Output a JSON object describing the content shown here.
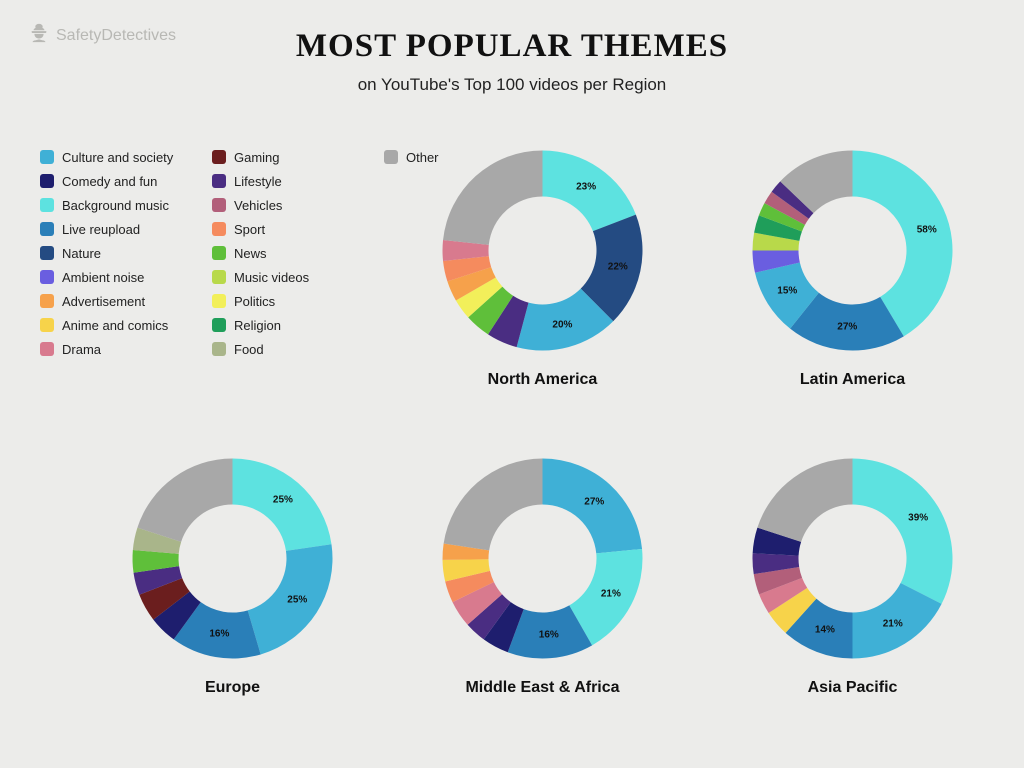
{
  "brand": {
    "name": "SafetyDetectives"
  },
  "title": "MOST POPULAR THEMES",
  "subtitle": "on YouTube's Top 100 videos per Region",
  "background_color": "#ececea",
  "title_fontsize": 33,
  "subtitle_fontsize": 17,
  "donut": {
    "outer_radius": 100,
    "inner_radius": 54,
    "start_angle_deg": 0,
    "label_radius": 77
  },
  "categories": {
    "culture": {
      "label": "Culture and society",
      "color": "#3fb0d6"
    },
    "comedy": {
      "label": "Comedy and fun",
      "color": "#1e1e6e"
    },
    "bgmusic": {
      "label": "Background music",
      "color": "#5de2e0"
    },
    "live": {
      "label": "Live reupload",
      "color": "#2a7fb8"
    },
    "nature": {
      "label": "Nature",
      "color": "#244b82"
    },
    "ambient": {
      "label": "Ambient noise",
      "color": "#6a5ee0"
    },
    "advert": {
      "label": "Advertisement",
      "color": "#f6a14b"
    },
    "anime": {
      "label": "Anime and comics",
      "color": "#f7d34a"
    },
    "drama": {
      "label": "Drama",
      "color": "#d87a8e"
    },
    "gaming": {
      "label": "Gaming",
      "color": "#6b1e1e"
    },
    "lifestyle": {
      "label": "Lifestyle",
      "color": "#4a2d82"
    },
    "vehicles": {
      "label": "Vehicles",
      "color": "#b25f7a"
    },
    "sport": {
      "label": "Sport",
      "color": "#f58b5e"
    },
    "news": {
      "label": "News",
      "color": "#5fbf3a"
    },
    "musicvideos": {
      "label": "Music videos",
      "color": "#b8d94a"
    },
    "politics": {
      "label": "Politics",
      "color": "#f2ef5a"
    },
    "religion": {
      "label": "Religion",
      "color": "#1f9e5a"
    },
    "food": {
      "label": "Food",
      "color": "#a9b58a"
    },
    "other": {
      "label": "Other",
      "color": "#a8a8a8"
    }
  },
  "legend_order": [
    "culture",
    "comedy",
    "bgmusic",
    "live",
    "nature",
    "ambient",
    "advert",
    "anime",
    "drama",
    "gaming",
    "lifestyle",
    "vehicles",
    "sport",
    "news",
    "musicvideos",
    "politics",
    "religion",
    "food",
    "other"
  ],
  "charts": [
    {
      "id": "chart-na",
      "label": "North America",
      "slices": [
        {
          "cat": "bgmusic",
          "value": 23,
          "show_label": true
        },
        {
          "cat": "nature",
          "value": 22,
          "show_label": true
        },
        {
          "cat": "culture",
          "value": 20,
          "show_label": true
        },
        {
          "cat": "lifestyle",
          "value": 6,
          "show_label": false
        },
        {
          "cat": "news",
          "value": 5,
          "show_label": false
        },
        {
          "cat": "politics",
          "value": 4,
          "show_label": false
        },
        {
          "cat": "advert",
          "value": 4,
          "show_label": false
        },
        {
          "cat": "sport",
          "value": 4,
          "show_label": false
        },
        {
          "cat": "drama",
          "value": 4,
          "show_label": false
        },
        {
          "cat": "other",
          "value": 28,
          "show_label": false
        }
      ]
    },
    {
      "id": "chart-la",
      "label": "Latin America",
      "slices": [
        {
          "cat": "bgmusic",
          "value": 58,
          "show_label": true
        },
        {
          "cat": "live",
          "value": 27,
          "show_label": true
        },
        {
          "cat": "culture",
          "value": 15,
          "show_label": true
        },
        {
          "cat": "ambient",
          "value": 5,
          "show_label": false
        },
        {
          "cat": "musicvideos",
          "value": 4,
          "show_label": false
        },
        {
          "cat": "religion",
          "value": 4,
          "show_label": false
        },
        {
          "cat": "news",
          "value": 3,
          "show_label": false
        },
        {
          "cat": "vehicles",
          "value": 3,
          "show_label": false
        },
        {
          "cat": "lifestyle",
          "value": 3,
          "show_label": false
        },
        {
          "cat": "other",
          "value": 18,
          "show_label": false
        }
      ]
    },
    {
      "id": "chart-eu",
      "label": "Europe",
      "slices": [
        {
          "cat": "bgmusic",
          "value": 25,
          "show_label": true
        },
        {
          "cat": "culture",
          "value": 25,
          "show_label": true
        },
        {
          "cat": "live",
          "value": 16,
          "show_label": true
        },
        {
          "cat": "comedy",
          "value": 5,
          "show_label": false
        },
        {
          "cat": "gaming",
          "value": 5,
          "show_label": false
        },
        {
          "cat": "lifestyle",
          "value": 4,
          "show_label": false
        },
        {
          "cat": "news",
          "value": 4,
          "show_label": false
        },
        {
          "cat": "food",
          "value": 4,
          "show_label": false
        },
        {
          "cat": "other",
          "value": 22,
          "show_label": false
        }
      ]
    },
    {
      "id": "chart-me",
      "label": "Middle East & Africa",
      "slices": [
        {
          "cat": "culture",
          "value": 27,
          "show_label": true
        },
        {
          "cat": "bgmusic",
          "value": 21,
          "show_label": true
        },
        {
          "cat": "live",
          "value": 16,
          "show_label": true
        },
        {
          "cat": "comedy",
          "value": 5,
          "show_label": false
        },
        {
          "cat": "lifestyle",
          "value": 4,
          "show_label": false
        },
        {
          "cat": "drama",
          "value": 5,
          "show_label": false
        },
        {
          "cat": "sport",
          "value": 4,
          "show_label": false
        },
        {
          "cat": "anime",
          "value": 4,
          "show_label": false
        },
        {
          "cat": "advert",
          "value": 3,
          "show_label": false
        },
        {
          "cat": "other",
          "value": 26,
          "show_label": false
        }
      ]
    },
    {
      "id": "chart-ap",
      "label": "Asia Pacific",
      "slices": [
        {
          "cat": "bgmusic",
          "value": 39,
          "show_label": true
        },
        {
          "cat": "culture",
          "value": 21,
          "show_label": true
        },
        {
          "cat": "live",
          "value": 14,
          "show_label": true
        },
        {
          "cat": "anime",
          "value": 5,
          "show_label": false
        },
        {
          "cat": "drama",
          "value": 4,
          "show_label": false
        },
        {
          "cat": "vehicles",
          "value": 4,
          "show_label": false
        },
        {
          "cat": "lifestyle",
          "value": 4,
          "show_label": false
        },
        {
          "cat": "comedy",
          "value": 5,
          "show_label": false
        },
        {
          "cat": "other",
          "value": 24,
          "show_label": false
        }
      ]
    }
  ]
}
